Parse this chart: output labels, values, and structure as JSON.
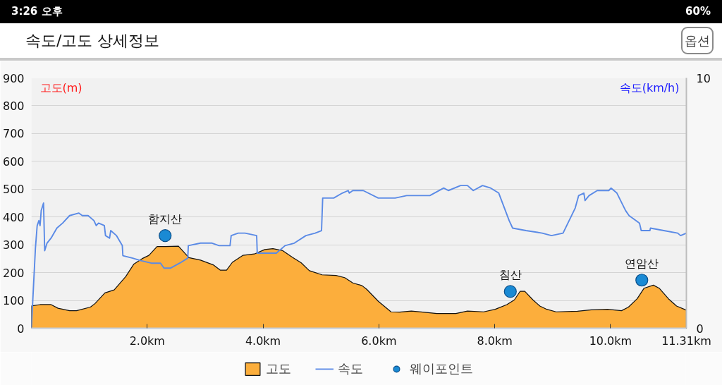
{
  "chart_data": {
    "type": "area",
    "title": "속도/고도 상세정보",
    "ylabel": "고도(m)",
    "y2label": "속도(km/h)",
    "annotations": [
      "3:26 오후",
      "60%",
      "옵션",
      {
        "text": "함지산",
        "x": 2.31,
        "y": 333
      },
      {
        "text": "침산",
        "x": 8.27,
        "y": 132
      },
      {
        "text": "연암산",
        "x": 10.54,
        "y": 173
      }
    ],
    "xlim": [
      0,
      11.31
    ],
    "xticks": [
      {
        "value": 2,
        "label": "2.0km"
      },
      {
        "value": 4,
        "label": "4.0km"
      },
      {
        "value": 6,
        "label": "6.0km"
      },
      {
        "value": 8,
        "label": "8.0km"
      },
      {
        "value": 10,
        "label": "10.0km"
      },
      {
        "value": 11.31,
        "label": "11.31km"
      }
    ],
    "ylim": [
      0,
      900
    ],
    "yticks": [
      0,
      100,
      200,
      300,
      400,
      500,
      600,
      700,
      800,
      900
    ],
    "y2lim": [
      0,
      10
    ],
    "y2ticks": [
      0,
      10
    ],
    "grid": "y",
    "legend": "bottom",
    "series": [
      {
        "name": "고도",
        "color": "#fcae3c",
        "x": [
          0,
          0.15,
          0.34,
          0.46,
          0.66,
          0.78,
          1.02,
          1.1,
          1.27,
          1.43,
          1.63,
          1.77,
          1.91,
          2.03,
          2.17,
          2.32,
          2.54,
          2.72,
          2.92,
          3.14,
          3.26,
          3.37,
          3.47,
          3.65,
          3.85,
          4.03,
          4.17,
          4.34,
          4.5,
          4.66,
          4.8,
          5.02,
          5.26,
          5.41,
          5.55,
          5.71,
          5.79,
          5.99,
          6.21,
          6.36,
          6.56,
          6.76,
          7.0,
          7.33,
          7.53,
          7.81,
          8.01,
          8.21,
          8.34,
          8.44,
          8.52,
          8.66,
          8.78,
          8.9,
          9.06,
          9.43,
          9.67,
          9.95,
          10.19,
          10.31,
          10.46,
          10.58,
          10.74,
          10.84,
          11.0,
          11.14,
          11.31
        ],
        "values": [
          80,
          85,
          85,
          72,
          63,
          63,
          76,
          89,
          127,
          138,
          186,
          231,
          250,
          262,
          294,
          294,
          295,
          254,
          245,
          228,
          209,
          209,
          237,
          262,
          267,
          283,
          286,
          279,
          256,
          235,
          207,
          192,
          190,
          182,
          163,
          153,
          140,
          97,
          59,
          58,
          62,
          58,
          53,
          53,
          62,
          59,
          68,
          85,
          102,
          133,
          133,
          102,
          80,
          68,
          59,
          61,
          66,
          68,
          63,
          76,
          106,
          144,
          155,
          144,
          106,
          80,
          65
        ]
      },
      {
        "name": "속도",
        "type": "line",
        "axis": "y2",
        "color": "#5a8ae6",
        "x": [
          0,
          0.07,
          0.1,
          0.13,
          0.15,
          0.17,
          0.21,
          0.23,
          0.27,
          0.34,
          0.44,
          0.54,
          0.66,
          0.82,
          0.88,
          0.98,
          1.08,
          1.12,
          1.16,
          1.26,
          1.28,
          1.35,
          1.37,
          1.47,
          1.57,
          1.58,
          1.75,
          1.89,
          2.07,
          2.23,
          2.29,
          2.4,
          2.56,
          2.7,
          2.71,
          2.92,
          3.12,
          3.24,
          3.43,
          3.45,
          3.57,
          3.69,
          3.89,
          3.9,
          4.07,
          4.23,
          4.38,
          4.54,
          4.74,
          4.9,
          5.01,
          5.03,
          5.22,
          5.37,
          5.47,
          5.49,
          5.55,
          5.73,
          5.99,
          6.28,
          6.48,
          6.88,
          7.12,
          7.2,
          7.41,
          7.53,
          7.63,
          7.79,
          7.93,
          8.07,
          8.25,
          8.31,
          8.54,
          8.82,
          8.98,
          9.18,
          9.39,
          9.45,
          9.54,
          9.56,
          9.63,
          9.77,
          9.97,
          10.01,
          10.11,
          10.26,
          10.32,
          10.5,
          10.53,
          10.68,
          10.69,
          10.92,
          11.16,
          11.21,
          11.31
        ],
        "values": [
          0,
          3.2,
          4.1,
          4.3,
          4.1,
          4.7,
          5.0,
          3.1,
          3.4,
          3.6,
          4.0,
          4.2,
          4.5,
          4.6,
          4.5,
          4.5,
          4.3,
          4.1,
          4.2,
          4.1,
          3.7,
          3.6,
          3.9,
          3.7,
          3.3,
          2.9,
          2.8,
          2.7,
          2.6,
          2.6,
          2.4,
          2.4,
          2.6,
          2.8,
          3.3,
          3.4,
          3.4,
          3.3,
          3.3,
          3.7,
          3.8,
          3.8,
          3.7,
          3.0,
          3.0,
          3.0,
          3.3,
          3.4,
          3.7,
          3.8,
          3.9,
          5.2,
          5.2,
          5.4,
          5.5,
          5.4,
          5.5,
          5.5,
          5.2,
          5.2,
          5.3,
          5.3,
          5.6,
          5.5,
          5.7,
          5.7,
          5.5,
          5.7,
          5.6,
          5.4,
          4.3,
          4.0,
          3.9,
          3.8,
          3.7,
          3.8,
          4.8,
          5.3,
          5.4,
          5.1,
          5.3,
          5.5,
          5.5,
          5.6,
          5.4,
          4.7,
          4.5,
          4.2,
          3.9,
          3.9,
          4.0,
          3.9,
          3.8,
          3.7,
          3.8
        ]
      },
      {
        "name": "웨이포인트",
        "type": "scatter",
        "marker": "circle",
        "color": "#1a8ad4",
        "x": [
          2.31,
          8.27,
          10.54
        ],
        "values": [
          333,
          132,
          173
        ]
      }
    ]
  }
}
